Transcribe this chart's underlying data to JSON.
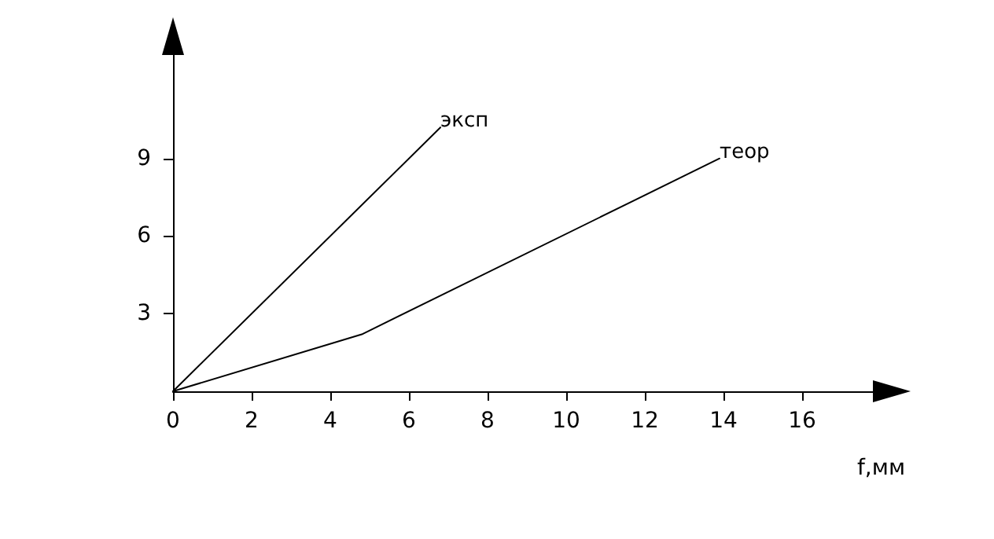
{
  "chart_data": {
    "type": "line",
    "xlabel": "f,мм",
    "series": [
      {
        "name": "эксп",
        "color": "#000000",
        "x": [
          0,
          6.8
        ],
        "values": [
          0,
          10.2
        ]
      },
      {
        "name": "теор",
        "color": "#000000",
        "x": [
          0,
          4.8,
          13.9
        ],
        "values": [
          0,
          2.2,
          9
        ]
      }
    ],
    "xlim": [
      0,
      17.8
    ],
    "xticks": [
      0,
      2,
      4,
      6,
      8,
      10,
      12,
      14,
      16
    ],
    "ylim": [
      0,
      13
    ],
    "yticks": [
      3,
      6,
      9
    ],
    "grid": false,
    "legend": false,
    "marker": "none",
    "line_style": "solid"
  }
}
